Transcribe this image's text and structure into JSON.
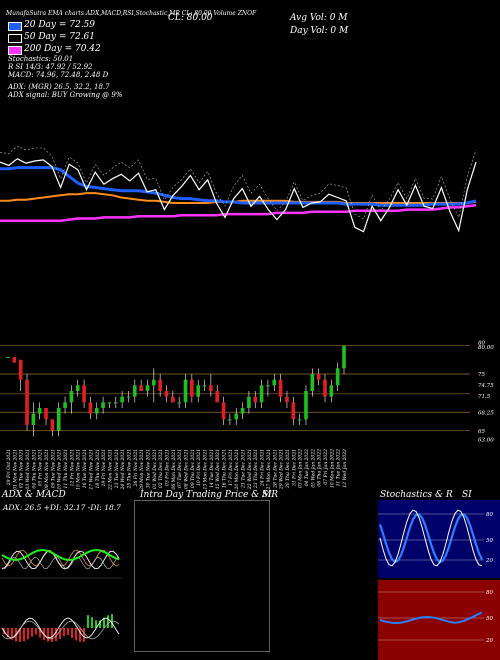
{
  "header": {
    "top_text": "MunafaSutra EMA charts ADX,MACD,RSI,Stochastic,MR CL: 80.00 Volume ZNOF",
    "cl_label": "CL: 80.00",
    "avg_vol": "Avg Vol: 0  M",
    "day_vol": "Day Vol: 0  M",
    "ma20": "20  Day = 72.59",
    "ma50": "50  Day = 72.61",
    "ma200": "200  Day = 70.42",
    "stochastics": "Stochastics: 50.01",
    "rsi": "R                    SI 14/3: 47.92 / 52.92",
    "macd": "MACD: 74.96, 72.48, 2.48  D",
    "adx": "ADX:                              (MGR) 26.5, 32.2, 18.7",
    "adx_signal": "ADX  signal:                                           BUY Growing @ 9%"
  },
  "colors": {
    "ma20": "#1f5fff",
    "ma50": "#ff8c1a",
    "ma200": "#ff33ff",
    "up": "#1fbf1f",
    "down": "#e02020",
    "price": "#ffffff"
  },
  "chart_data": [
    {
      "type": "line",
      "name": "price-ema",
      "x_count": 56,
      "series": [
        {
          "name": "price",
          "values": [
            70.5,
            70.2,
            70.8,
            70.4,
            70.6,
            70.7,
            70.1,
            68.2,
            70.3,
            69.8,
            68.0,
            69.6,
            68.5,
            69.0,
            69.4,
            68.8,
            69.5,
            67.8,
            68.0,
            66.2,
            67.5,
            68.3,
            69.3,
            68.0,
            68.9,
            66.8,
            65.5,
            67.2,
            68.1,
            66.5,
            67.4,
            66.2,
            65.3,
            66.2,
            68.1,
            66.4,
            66.8,
            66.9,
            67.6,
            67.3,
            67.0,
            64.6,
            64.2,
            66.5,
            65.2,
            66.4,
            68.0,
            66.6,
            68.4,
            66.5,
            66.3,
            68.2,
            66.0,
            64.3,
            68.0,
            70.5
          ]
        },
        {
          "name": "ma20",
          "values": [
            69.9,
            69.9,
            70.0,
            70.0,
            70.0,
            70.0,
            70.0,
            69.8,
            69.2,
            68.6,
            68.3,
            68.2,
            68.1,
            68.0,
            67.9,
            67.9,
            67.9,
            67.8,
            67.7,
            67.5,
            67.3,
            67.2,
            67.2,
            67.1,
            67.0,
            67.0,
            66.9,
            66.9,
            66.8,
            66.8,
            66.8,
            66.8,
            66.8,
            66.8,
            66.8,
            66.8,
            66.8,
            66.8,
            66.8,
            66.8,
            66.7,
            66.7,
            66.7,
            66.7,
            66.6,
            66.6,
            66.6,
            66.6,
            66.6,
            66.6,
            66.7,
            66.7,
            66.7,
            66.7,
            66.8,
            67.0
          ]
        },
        {
          "name": "ma50",
          "values": [
            67.0,
            67.0,
            67.1,
            67.1,
            67.2,
            67.3,
            67.4,
            67.5,
            67.6,
            67.6,
            67.7,
            67.7,
            67.6,
            67.5,
            67.3,
            67.2,
            67.1,
            67.0,
            67.0,
            66.9,
            66.8,
            66.8,
            66.8,
            66.8,
            66.8,
            66.9,
            66.9,
            66.9,
            67.0,
            67.0,
            67.0,
            67.0,
            67.0,
            67.0,
            66.9,
            66.9,
            66.9,
            66.9,
            66.9,
            66.9,
            66.8,
            66.8,
            66.8,
            66.8,
            66.8,
            66.8,
            66.8,
            66.8,
            66.8,
            66.8,
            66.8,
            66.8,
            66.8,
            66.8,
            66.8,
            66.9
          ]
        },
        {
          "name": "ma200",
          "values": [
            65.2,
            65.2,
            65.2,
            65.2,
            65.2,
            65.2,
            65.2,
            65.2,
            65.3,
            65.4,
            65.4,
            65.4,
            65.5,
            65.5,
            65.5,
            65.5,
            65.6,
            65.6,
            65.6,
            65.6,
            65.6,
            65.7,
            65.7,
            65.7,
            65.7,
            65.7,
            65.8,
            65.8,
            65.8,
            65.8,
            65.8,
            65.8,
            65.9,
            65.9,
            65.9,
            65.9,
            66.0,
            66.0,
            66.0,
            66.0,
            66.0,
            66.1,
            66.1,
            66.1,
            66.1,
            66.1,
            66.1,
            66.2,
            66.2,
            66.2,
            66.2,
            66.3,
            66.4,
            66.4,
            66.5,
            66.6
          ]
        }
      ]
    },
    {
      "type": "candlestick",
      "name": "ohlc",
      "y_ticks": [
        "80",
        "80.00",
        "75",
        "74.75",
        "71.5",
        "68.25",
        "65",
        "63.00"
      ],
      "x": [
        "29 Fri Oct 2021",
        "01 Mon Nov 2021",
        "02 Tue Nov 2021",
        "03 Wed Nov 2021",
        "04 Thu Nov 2021",
        "05 Fri Nov 2021",
        "08 Mon Nov 2021",
        "09 Tue Nov 2021",
        "10 Wed Nov 2021",
        "11 Thu Nov 2021",
        "12 Fri Nov 2021",
        "15 Mon Nov 2021",
        "16 Tue Nov 2021",
        "17 Wed Nov 2021",
        "18 Thu Nov 2021",
        "19 Fri Nov 2021",
        "22 Mon Nov 2021",
        "23 Tue Nov 2021",
        "24 Wed Nov 2021",
        "25 Thu Nov 2021",
        "26 Fri Nov 2021",
        "29 Mon Nov 2021",
        "30 Tue Nov 2021",
        "01 Wed Dec 2021",
        "02 Thu Dec 2021",
        "03 Fri Dec 2021",
        "06 Mon Dec 2021",
        "07 Tue Dec 2021",
        "08 Wed Dec 2021",
        "09 Thu Dec 2021",
        "10 Fri Dec 2021",
        "13 Mon Dec 2021",
        "14 Tue Dec 2021",
        "15 Wed Dec 2021",
        "16 Thu Dec 2021",
        "17 Fri Dec 2021",
        "20 Mon Dec 2021",
        "21 Tue Dec 2021",
        "22 Wed Dec 2021",
        "23 Thu Dec 2021",
        "24 Fri Dec 2021",
        "27 Mon Dec 2021",
        "28 Tue Dec 2021",
        "29 Wed Dec 2021",
        "30 Thu Dec 2021",
        "31 Fri Dec 2021",
        "03 Mon Jan 2022",
        "04 Tue Jan 2022",
        "05 Wed Jan 2022",
        "06 Thu Jan 2022",
        "07 Fri Jan 2022",
        "10 Mon Jan 2022",
        "11 Tue Jan 2022",
        "12 Wed Jan 2022"
      ],
      "candles": [
        [
          78,
          78,
          78,
          78
        ],
        [
          78,
          78,
          77,
          77
        ],
        [
          77.5,
          77.5,
          72,
          74
        ],
        [
          74,
          75,
          65,
          66
        ],
        [
          66,
          70,
          64,
          68
        ],
        [
          68,
          70,
          67,
          69
        ],
        [
          69,
          69,
          66,
          67
        ],
        [
          67,
          67,
          64,
          65
        ],
        [
          65,
          70,
          64,
          69
        ],
        [
          69,
          71,
          68,
          70
        ],
        [
          70,
          73,
          68,
          72
        ],
        [
          72,
          74,
          71,
          73
        ],
        [
          73,
          74,
          69,
          70
        ],
        [
          70,
          71,
          67,
          68
        ],
        [
          68,
          70,
          67,
          69
        ],
        [
          69,
          71,
          68,
          70
        ],
        [
          70,
          70,
          69,
          70
        ],
        [
          70,
          71,
          69,
          70
        ],
        [
          70,
          72,
          69,
          71
        ],
        [
          71,
          72,
          70,
          71
        ],
        [
          71,
          74,
          70,
          73
        ],
        [
          73,
          74,
          72,
          72
        ],
        [
          72,
          74,
          71,
          73
        ],
        [
          73,
          76,
          70,
          74
        ],
        [
          74,
          75,
          71,
          72
        ],
        [
          72,
          73,
          70,
          71
        ],
        [
          71,
          72,
          70,
          70
        ],
        [
          70,
          71,
          69,
          70
        ],
        [
          70,
          75,
          69,
          74
        ],
        [
          74,
          75,
          70,
          71
        ],
        [
          71,
          74,
          70,
          73
        ],
        [
          73,
          74,
          72,
          73
        ],
        [
          73,
          75,
          71,
          72
        ],
        [
          72,
          73,
          70,
          70
        ],
        [
          70,
          71,
          66,
          67
        ],
        [
          67,
          68,
          66,
          67
        ],
        [
          67,
          69,
          66,
          68
        ],
        [
          68,
          70,
          67,
          69
        ],
        [
          69,
          72,
          68,
          71
        ],
        [
          71,
          72,
          69,
          70
        ],
        [
          70,
          74,
          69,
          73
        ],
        [
          73,
          74,
          71,
          73
        ],
        [
          73,
          75,
          72,
          74
        ],
        [
          74,
          75,
          70,
          71
        ],
        [
          71,
          72,
          69,
          70
        ],
        [
          70,
          71,
          66,
          67
        ],
        [
          67,
          68,
          66,
          67
        ],
        [
          67,
          73,
          66,
          72
        ],
        [
          72,
          76,
          71,
          75
        ],
        [
          75,
          76,
          73,
          74
        ],
        [
          74,
          75,
          70,
          71
        ],
        [
          71,
          74,
          70,
          73
        ],
        [
          73,
          77,
          72,
          76
        ],
        [
          76,
          80,
          75,
          80
        ]
      ]
    },
    {
      "type": "line",
      "name": "adx-macd",
      "title": "ADX  & MACD",
      "label": "ADX: 26.5  +DI: 32.17  -DI: 18.7"
    },
    {
      "type": "line",
      "name": "intraday",
      "title": "Intra  Day Trading Price  & MR",
      "title2": "SI"
    },
    {
      "type": "line",
      "name": "stochastics-rsi",
      "title": "Stochastics & R",
      "title2": "SI",
      "stoch_ticks": [
        "80",
        "50",
        "20"
      ],
      "rsi_ticks": [
        "80",
        "50",
        "20"
      ]
    }
  ]
}
